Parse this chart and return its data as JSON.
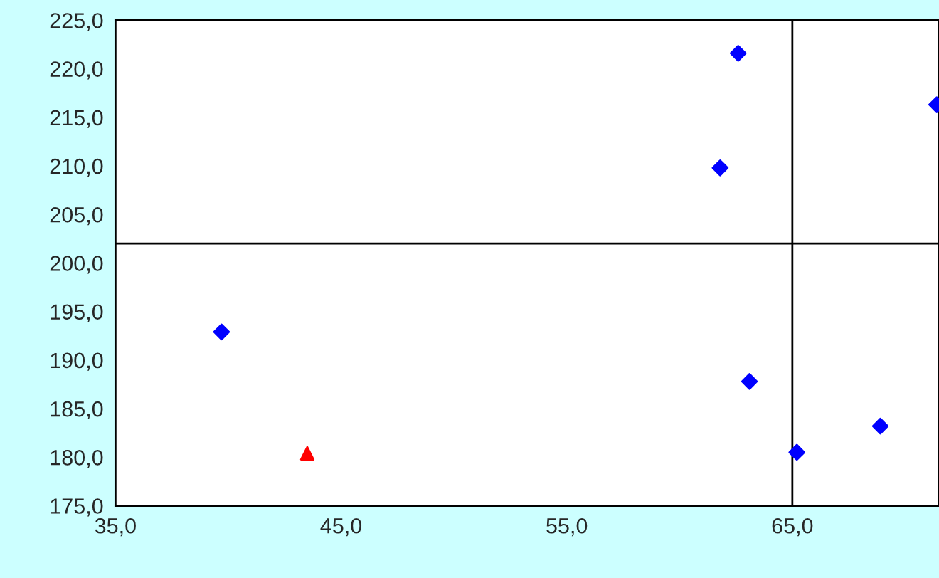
{
  "chart_data": {
    "type": "scatter",
    "series": [
      {
        "color": "#0000ff",
        "marker": "diamond",
        "x": [
          62.6,
          71.4,
          61.8,
          39.7,
          63.1,
          68.9,
          65.2
        ],
        "values": [
          221.6,
          216.3,
          209.8,
          192.9,
          187.8,
          183.2,
          180.5
        ]
      },
      {
        "color": "#ff0000",
        "marker": "triangle",
        "x": [
          43.5
        ],
        "values": [
          180.4
        ]
      }
    ],
    "xlim": [
      35,
      71.5
    ],
    "ylim": [
      175,
      225
    ],
    "xticks": [
      {
        "value": 35,
        "label": "35,0"
      },
      {
        "value": 45,
        "label": "45,0"
      },
      {
        "value": 55,
        "label": "55,0"
      },
      {
        "value": 65,
        "label": "65,0"
      }
    ],
    "yticks": [
      {
        "value": 175,
        "label": "175,0"
      },
      {
        "value": 180,
        "label": "180,0"
      },
      {
        "value": 185,
        "label": "185,0"
      },
      {
        "value": 190,
        "label": "190,0"
      },
      {
        "value": 195,
        "label": "195,0"
      },
      {
        "value": 200,
        "label": "200,0"
      },
      {
        "value": 205,
        "label": "205,0"
      },
      {
        "value": 210,
        "label": "210,0"
      },
      {
        "value": 215,
        "label": "215,0"
      },
      {
        "value": 220,
        "label": "220,0"
      },
      {
        "value": 225,
        "label": "225,0"
      }
    ],
    "ref_lines": [
      {
        "axis": "y",
        "value": 202,
        "color": "#000000"
      },
      {
        "axis": "x",
        "value": 65,
        "color": "#000000"
      }
    ],
    "grid": false,
    "legend": false
  }
}
